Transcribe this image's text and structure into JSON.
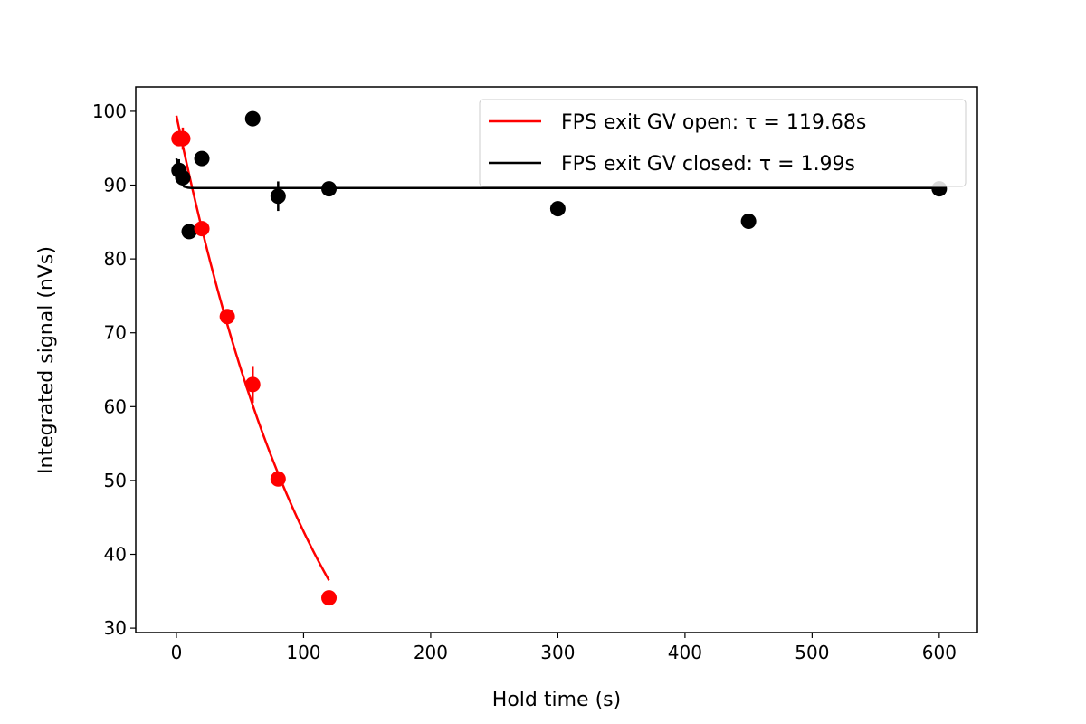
{
  "chart_data": {
    "type": "scatter",
    "title": "",
    "xlabel": "Hold time (s)",
    "ylabel": "Integrated signal (nVs)",
    "xlim": [
      -32,
      630
    ],
    "ylim": [
      29.4,
      103.3
    ],
    "xticks": [
      0,
      100,
      200,
      300,
      400,
      500,
      600
    ],
    "yticks": [
      30,
      40,
      50,
      60,
      70,
      80,
      90,
      100
    ],
    "grid": false,
    "legend_position": "top-right",
    "series": [
      {
        "name": "FPS exit GV open:  τ = 119.68s",
        "color": "#ff0000",
        "points": [
          {
            "x": 2,
            "y": 96.3,
            "err": 0.8
          },
          {
            "x": 5,
            "y": 96.3,
            "err": 1.5
          },
          {
            "x": 20,
            "y": 84.1,
            "err": 0.8
          },
          {
            "x": 40,
            "y": 72.2,
            "err": 0.6
          },
          {
            "x": 60,
            "y": 63.0,
            "err": 2.5
          },
          {
            "x": 80,
            "y": 50.2,
            "err": 0.8
          },
          {
            "x": 120,
            "y": 34.1,
            "err": 0.5
          }
        ],
        "fit": {
          "model": "exponential",
          "A": 99.4,
          "tau": 119.68,
          "x_range": [
            0,
            120
          ]
        }
      },
      {
        "name": "FPS exit GV closed:  τ = 1.99s",
        "color": "#000000",
        "points": [
          {
            "x": 2,
            "y": 92.0,
            "err": 1.5
          },
          {
            "x": 5,
            "y": 91.0,
            "err": 1.0
          },
          {
            "x": 10,
            "y": 83.7,
            "err": 1.0
          },
          {
            "x": 20,
            "y": 93.6,
            "err": 0.6
          },
          {
            "x": 60,
            "y": 99.0,
            "err": 0.6
          },
          {
            "x": 80,
            "y": 88.5,
            "err": 2.0
          },
          {
            "x": 120,
            "y": 89.5,
            "err": 0.6
          },
          {
            "x": 300,
            "y": 86.8,
            "err": 0.6
          },
          {
            "x": 450,
            "y": 85.1,
            "err": 0.6
          },
          {
            "x": 600,
            "y": 89.5,
            "err": 0.6
          }
        ],
        "fit": {
          "model": "exponential_offset",
          "C": 89.6,
          "A": 4.0,
          "tau": 1.99,
          "x_range": [
            0,
            600
          ]
        }
      }
    ]
  }
}
